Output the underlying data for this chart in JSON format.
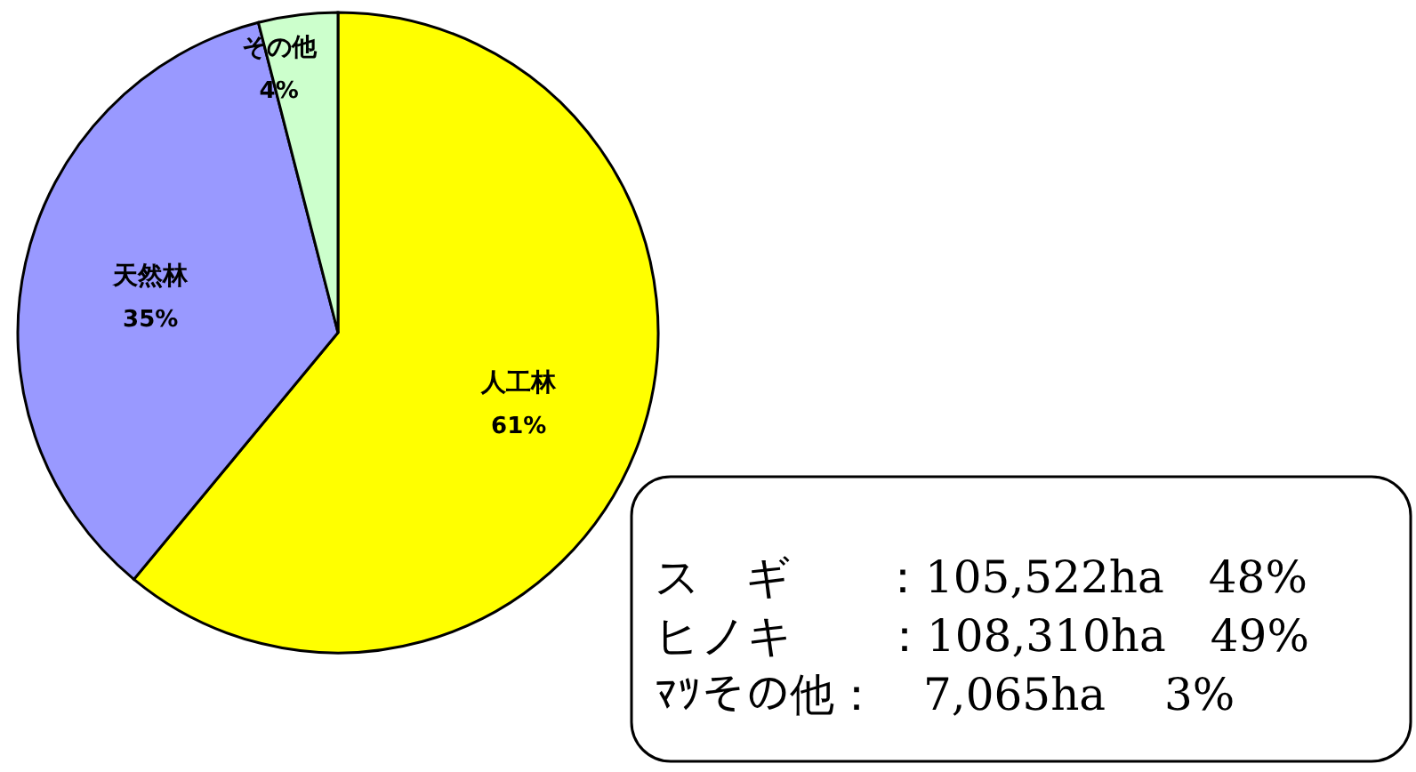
{
  "chart_data": {
    "type": "pie",
    "categories": [
      "人工林",
      "天然林",
      "その他"
    ],
    "values": [
      61,
      35,
      4
    ],
    "colors": [
      "#ffff00",
      "#9999ff",
      "#ccffcc"
    ],
    "value_labels": [
      "61%",
      "35%",
      "4%"
    ],
    "annotations": [
      "ス　ギ　　：105,522ha　48%",
      "ヒノキ　　：108,310ha　49%",
      "ﾏﾂその他：　7,065ha　 3%"
    ]
  }
}
